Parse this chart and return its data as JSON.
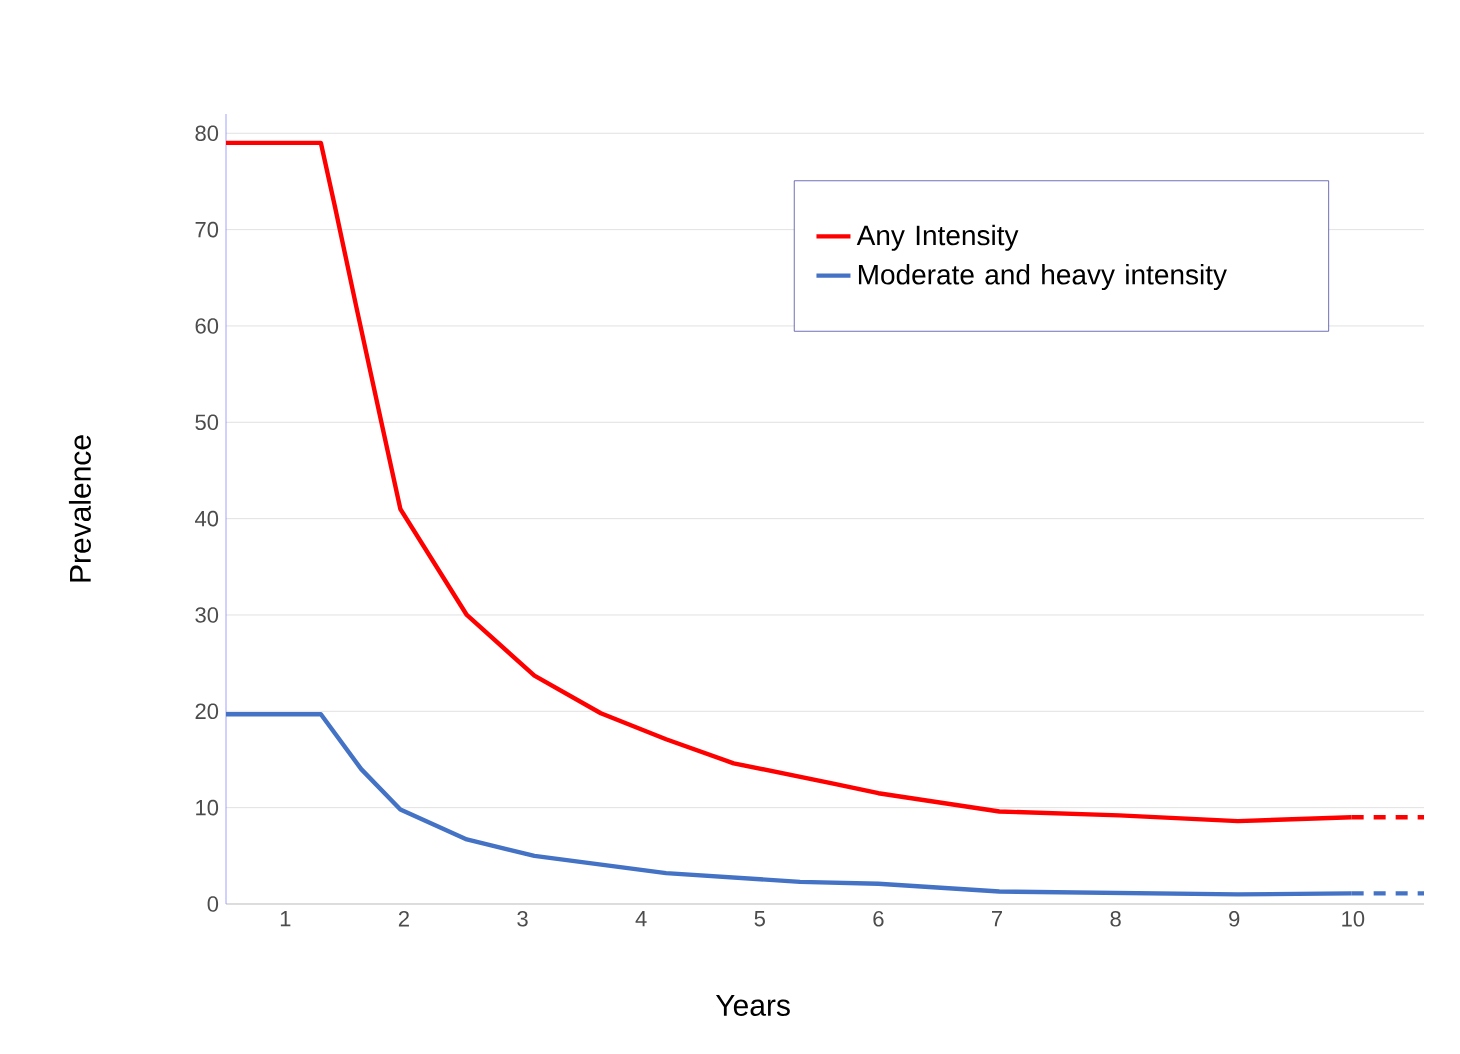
{
  "chart_data": {
    "type": "line",
    "xlabel": "Years",
    "ylabel": "Prevalence",
    "xlim": [
      0.5,
      10.6
    ],
    "xticks": [
      1,
      2,
      3,
      4,
      5,
      6,
      7,
      8,
      9,
      10
    ],
    "ylim": [
      0,
      82
    ],
    "yticks": [
      0,
      10,
      20,
      30,
      40,
      50,
      60,
      70,
      80
    ],
    "grid": "y",
    "legend": "top right",
    "marker": "none",
    "series": [
      {
        "name": "Any Intensity",
        "color": "#ff0000",
        "line_style": "solid",
        "x": [
          0.5,
          1.3,
          1.42,
          1.6,
          1.81,
          1.97,
          2.53,
          3.1,
          3.66,
          4.21,
          4.78,
          5.62,
          6.0,
          7.02,
          8.03,
          9.03,
          9.99
        ],
        "values": [
          79,
          79,
          72.3,
          61.9,
          50,
          41,
          30,
          23.7,
          19.8,
          17.1,
          14.6,
          12.5,
          11.5,
          9.6,
          9.2,
          8.6,
          9.0
        ]
      },
      {
        "name": "Moderate and heavy intensity",
        "color": "#4472c4",
        "line_style": "solid",
        "x": [
          0.5,
          1.3,
          1.64,
          1.97,
          2.53,
          3.1,
          4.21,
          5.34,
          6.0,
          7.02,
          9.03,
          9.99
        ],
        "values": [
          19.7,
          19.7,
          14,
          9.8,
          6.7,
          5.0,
          3.2,
          2.3,
          2.1,
          1.3,
          1.0,
          1.1
        ]
      },
      {
        "color": "#ff0000",
        "line_style": "dashed",
        "x": [
          9.99,
          10.6
        ],
        "values": [
          9.0,
          9.0
        ]
      },
      {
        "color": "#4472c4",
        "line_style": "dashed",
        "x": [
          9.99,
          10.6
        ],
        "values": [
          1.1,
          1.1
        ]
      }
    ]
  }
}
